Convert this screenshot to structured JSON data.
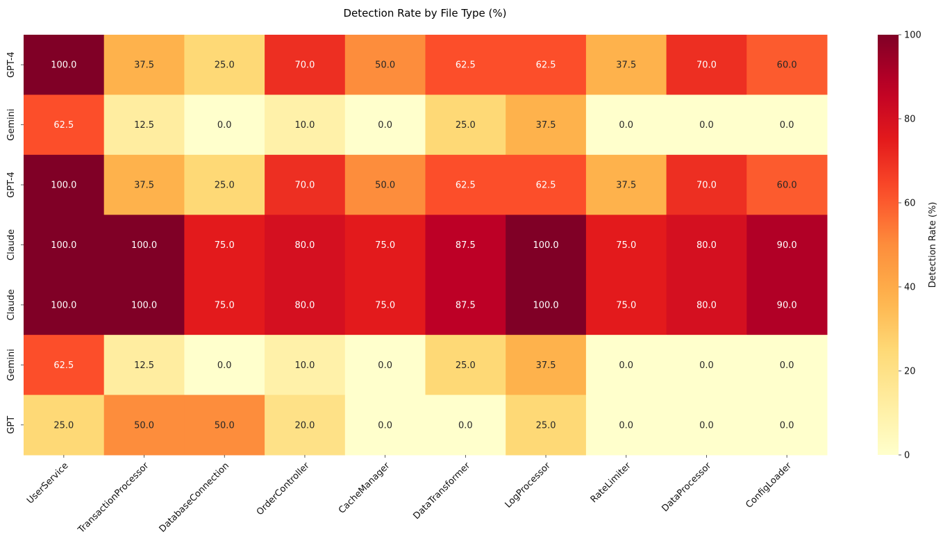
{
  "chart_data": {
    "type": "heatmap",
    "title": "Detection Rate by File Type (%)",
    "xlabel": "",
    "ylabel": "",
    "x_categories": [
      "UserService",
      "TransactionProcessor",
      "DatabaseConnection",
      "OrderController",
      "CacheManager",
      "DataTransformer",
      "LogProcessor",
      "RateLimiter",
      "DataProcessor",
      "ConfigLoader"
    ],
    "y_categories": [
      "GPT-4",
      "Gemini",
      "GPT-4",
      "Claude",
      "Claude",
      "Gemini",
      "GPT"
    ],
    "values": [
      [
        100.0,
        37.5,
        25.0,
        70.0,
        50.0,
        62.5,
        62.5,
        37.5,
        70.0,
        60.0
      ],
      [
        62.5,
        12.5,
        0.0,
        10.0,
        0.0,
        25.0,
        37.5,
        0.0,
        0.0,
        0.0
      ],
      [
        100.0,
        37.5,
        25.0,
        70.0,
        50.0,
        62.5,
        62.5,
        37.5,
        70.0,
        60.0
      ],
      [
        100.0,
        100.0,
        75.0,
        80.0,
        75.0,
        87.5,
        100.0,
        75.0,
        80.0,
        90.0
      ],
      [
        100.0,
        100.0,
        75.0,
        80.0,
        75.0,
        87.5,
        100.0,
        75.0,
        80.0,
        90.0
      ],
      [
        62.5,
        12.5,
        0.0,
        10.0,
        0.0,
        25.0,
        37.5,
        0.0,
        0.0,
        0.0
      ],
      [
        25.0,
        50.0,
        50.0,
        20.0,
        0.0,
        0.0,
        25.0,
        0.0,
        0.0,
        0.0
      ]
    ],
    "value_range": [
      0,
      100
    ],
    "colormap": "YlOrRd",
    "colorbar": {
      "label": "Detection Rate (%)",
      "ticks": [
        0,
        20,
        40,
        60,
        80,
        100
      ]
    },
    "annotations": true,
    "grid": false,
    "legend": "colorbar-right"
  }
}
